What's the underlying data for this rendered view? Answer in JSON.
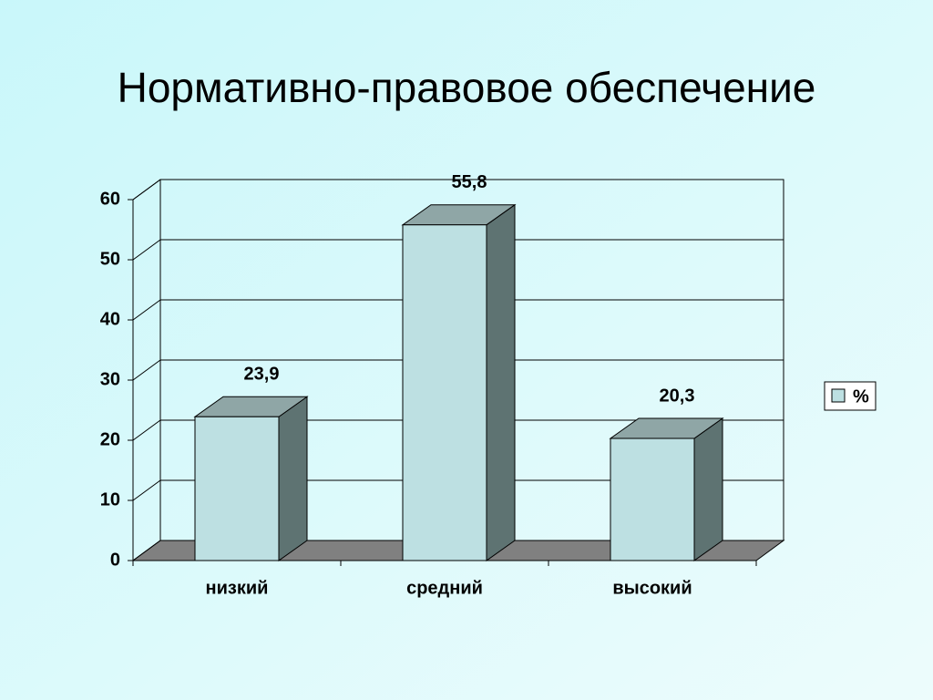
{
  "chart_data": {
    "type": "bar3d",
    "title": "Нормативно-правовое обеспечение",
    "categories": [
      "низкий",
      "средний",
      "высокий"
    ],
    "series": [
      {
        "name": "%",
        "color": "#bde0e2",
        "values": [
          23.9,
          55.8,
          20.3
        ],
        "value_labels": [
          "23,9",
          "55,8",
          "20,3"
        ]
      }
    ],
    "ylim": [
      0,
      60
    ],
    "yticks": [
      0,
      10,
      20,
      30,
      40,
      50,
      60
    ],
    "grid": true,
    "legend": "right"
  }
}
